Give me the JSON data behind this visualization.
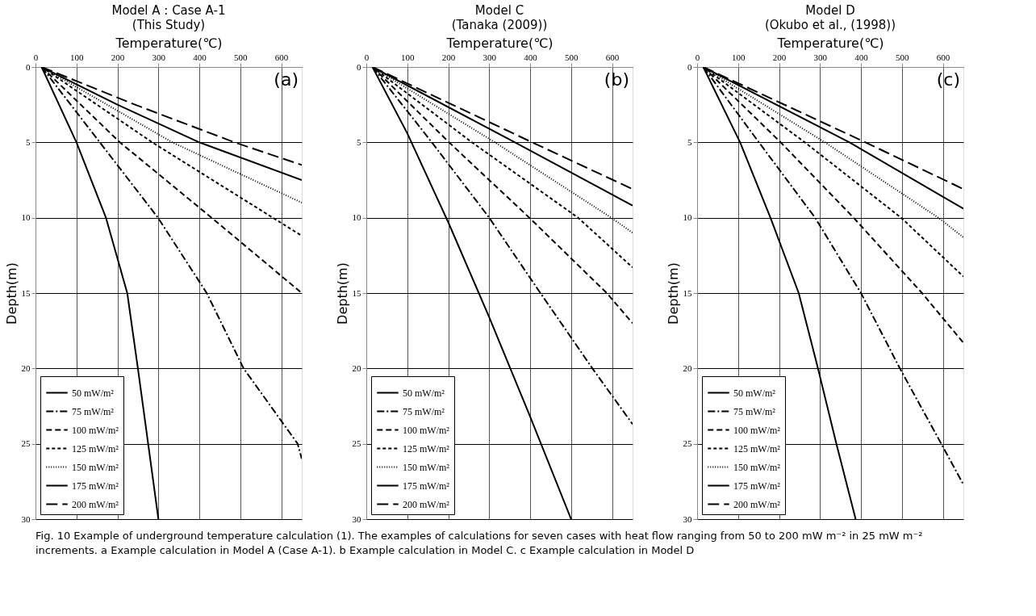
{
  "chart_data": [
    {
      "type": "line",
      "title": "Model A : Case A-1",
      "subtitle": "(This Study)",
      "xlabel": "Temperature(℃)",
      "ylabel": "Depth(m)",
      "xlim": [
        0,
        650
      ],
      "ylim": [
        30,
        0
      ],
      "xticks": [
        0,
        100,
        200,
        300,
        400,
        500,
        600
      ],
      "yticks": [
        0,
        5,
        10,
        15,
        20,
        25,
        30
      ],
      "grid": true,
      "legend": "bottom left",
      "annotations": [
        "(a)",
        "Fig. 10  Example of underground temperature calculation (1). The examples of calculations for seven cases with heat flow ranging from 50 to 200 mW m⁻² in 25 mW m⁻² increments. a Example calculation in Model A (Case A-1). b Example calculation in Model C. c Example calculation in Model D"
      ],
      "series": [
        {
          "name": "50 mW/m²",
          "color": "#000000",
          "line_style": "solid",
          "x": [
            15,
            100,
            172,
            224,
            250,
            275,
            300
          ],
          "values": [
            0,
            5,
            10,
            15,
            20,
            25,
            30
          ]
        },
        {
          "name": "75 mW/m²",
          "color": "#000000",
          "line_style": "dashdot",
          "x": [
            15,
            157,
            299,
            418,
            508,
            640,
            650
          ],
          "values": [
            0,
            5,
            10,
            15,
            20,
            25,
            26
          ]
        },
        {
          "name": "100 mW/m²",
          "color": "#000000",
          "line_style": "dashed",
          "x": [
            15,
            206,
            430,
            650
          ],
          "values": [
            0,
            5,
            10,
            15
          ]
        },
        {
          "name": "125 mW/m²",
          "color": "#000000",
          "line_style": "shortdash",
          "x": [
            15,
            285,
            650
          ],
          "values": [
            0,
            5,
            11.2
          ]
        },
        {
          "name": "150 mW/m²",
          "color": "#000000",
          "line_style": "dotted",
          "x": [
            15,
            334,
            650
          ],
          "values": [
            0,
            5,
            9
          ]
        },
        {
          "name": "175 mW/m²",
          "color": "#000000",
          "line_style": "solid",
          "x": [
            15,
            200,
            400,
            650
          ],
          "values": [
            0,
            2.5,
            5,
            7.5
          ]
        },
        {
          "name": "200 mW/m²",
          "color": "#000000",
          "line_style": "longdash",
          "x": [
            15,
            243,
            486,
            650
          ],
          "values": [
            0,
            2.5,
            5,
            6.5
          ]
        }
      ]
    },
    {
      "type": "line",
      "title": "Model C",
      "subtitle": "(Tanaka (2009))",
      "xlabel": "Temperature(℃)",
      "ylabel": "Depth(m)",
      "xlim": [
        0,
        650
      ],
      "ylim": [
        30,
        0
      ],
      "xticks": [
        0,
        100,
        200,
        300,
        400,
        500,
        600
      ],
      "yticks": [
        0,
        5,
        10,
        15,
        20,
        25,
        30
      ],
      "grid": true,
      "legend": "bottom left",
      "annotations": [
        "(b)"
      ],
      "series": [
        {
          "name": "50 mW/m²",
          "color": "#000000",
          "line_style": "solid",
          "x": [
            15,
            100,
            200,
            300,
            400,
            500
          ],
          "values": [
            0,
            4.4,
            10.3,
            16.6,
            23.2,
            30
          ]
        },
        {
          "name": "75 mW/m²",
          "color": "#000000",
          "line_style": "dashdot",
          "x": [
            15,
            160,
            300,
            425,
            552,
            650
          ],
          "values": [
            0,
            5,
            10,
            15,
            20,
            23.7
          ]
        },
        {
          "name": "100 mW/m²",
          "color": "#000000",
          "line_style": "dashed",
          "x": [
            15,
            202,
            398,
            587,
            650
          ],
          "values": [
            0,
            5,
            10,
            15,
            17
          ]
        },
        {
          "name": "125 mW/m²",
          "color": "#000000",
          "line_style": "shortdash",
          "x": [
            15,
            258,
            517,
            650
          ],
          "values": [
            0,
            5,
            10,
            13.3
          ]
        },
        {
          "name": "150 mW/m²",
          "color": "#000000",
          "line_style": "dotted",
          "x": [
            15,
            314,
            598,
            650
          ],
          "values": [
            0,
            5,
            10,
            11
          ]
        },
        {
          "name": "175 mW/m²",
          "color": "#000000",
          "line_style": "solid",
          "x": [
            15,
            363,
            650
          ],
          "values": [
            0,
            5,
            9.2
          ]
        },
        {
          "name": "200 mW/m²",
          "color": "#000000",
          "line_style": "longdash",
          "x": [
            15,
            405,
            650
          ],
          "values": [
            0,
            5,
            8.1
          ]
        }
      ]
    },
    {
      "type": "line",
      "title": "Model D",
      "subtitle": "(Okubo et al., (1998))",
      "xlabel": "Temperature(℃)",
      "ylabel": "Depth(m)",
      "xlim": [
        0,
        650
      ],
      "ylim": [
        30,
        0
      ],
      "xticks": [
        0,
        100,
        200,
        300,
        400,
        500,
        600
      ],
      "yticks": [
        0,
        5,
        10,
        15,
        20,
        25,
        30
      ],
      "grid": true,
      "legend": "bottom left",
      "annotations": [
        "(c)"
      ],
      "series": [
        {
          "name": "50 mW/m²",
          "color": "#000000",
          "line_style": "solid",
          "x": [
            15,
            105,
            179,
            248,
            295,
            340,
            387
          ],
          "values": [
            0,
            5,
            10,
            15,
            20,
            25,
            30
          ]
        },
        {
          "name": "75 mW/m²",
          "color": "#000000",
          "line_style": "dashdot",
          "x": [
            15,
            151,
            288,
            400,
            495,
            596,
            650
          ],
          "values": [
            0,
            5,
            10,
            15,
            20,
            25,
            27.7
          ]
        },
        {
          "name": "100 mW/m²",
          "color": "#000000",
          "line_style": "dashed",
          "x": [
            15,
            204,
            382,
            549,
            650
          ],
          "values": [
            0,
            5,
            10,
            15,
            18.3
          ]
        },
        {
          "name": "125 mW/m²",
          "color": "#000000",
          "line_style": "shortdash",
          "x": [
            15,
            263,
            498,
            650
          ],
          "values": [
            0,
            5,
            10,
            13.9
          ]
        },
        {
          "name": "150 mW/m²",
          "color": "#000000",
          "line_style": "dotted",
          "x": [
            15,
            312,
            589,
            650
          ],
          "values": [
            0,
            5,
            10,
            11.3
          ]
        },
        {
          "name": "175 mW/m²",
          "color": "#000000",
          "line_style": "solid",
          "x": [
            15,
            372,
            650
          ],
          "values": [
            0,
            5,
            9.4
          ]
        },
        {
          "name": "200 mW/m²",
          "color": "#000000",
          "line_style": "longdash",
          "x": [
            15,
            411,
            650
          ],
          "values": [
            0,
            5,
            8.1
          ]
        }
      ]
    }
  ]
}
